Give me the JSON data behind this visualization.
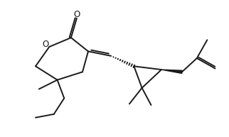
{
  "bg_color": "#ffffff",
  "line_color": "#1a1a1a",
  "line_width": 1.4,
  "figsize": [
    3.22,
    1.93
  ],
  "dpi": 100,
  "xlim": [
    0.0,
    10.0
  ],
  "ylim": [
    0.0,
    6.0
  ]
}
